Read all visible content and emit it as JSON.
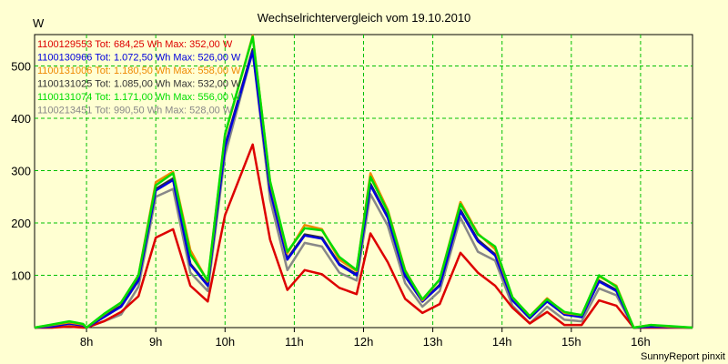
{
  "chart_data": {
    "type": "line",
    "title": "Wechselrichtervergleich vom 19.10.2010",
    "ylabel": "W",
    "xlabel": "",
    "credit": "SunnyReport pinxit",
    "ylim": [
      0,
      560
    ],
    "yticks": [
      100,
      200,
      300,
      400,
      500
    ],
    "xlim": [
      7.25,
      16.75
    ],
    "xticks": [
      {
        "value": 8,
        "label": "8h"
      },
      {
        "value": 9,
        "label": "9h"
      },
      {
        "value": 10,
        "label": "10h"
      },
      {
        "value": 11,
        "label": "11h"
      },
      {
        "value": 12,
        "label": "12h"
      },
      {
        "value": 13,
        "label": "13h"
      },
      {
        "value": 14,
        "label": "14h"
      },
      {
        "value": 15,
        "label": "15h"
      },
      {
        "value": 16,
        "label": "16h"
      }
    ],
    "grid": true,
    "legend_position": "top-left",
    "x": [
      7.25,
      7.5,
      7.75,
      7.95,
      8.0,
      8.25,
      8.5,
      8.75,
      9.0,
      9.25,
      9.5,
      9.75,
      10.0,
      10.4,
      10.65,
      10.9,
      11.15,
      11.4,
      11.65,
      11.9,
      12.1,
      12.35,
      12.6,
      12.85,
      13.1,
      13.4,
      13.65,
      13.9,
      14.15,
      14.4,
      14.65,
      14.9,
      15.15,
      15.4,
      15.65,
      15.9,
      16.15,
      16.4,
      16.75
    ],
    "series": [
      {
        "name": "1100129553",
        "label": "1100129553 Tot: 684,25 Wh Max: 352,00 W",
        "color": "#dd0000",
        "values": [
          0,
          0,
          2,
          0,
          0,
          12,
          30,
          60,
          172,
          188,
          80,
          50,
          215,
          350,
          168,
          72,
          110,
          102,
          76,
          64,
          180,
          125,
          55,
          28,
          45,
          143,
          105,
          80,
          38,
          8,
          30,
          5,
          5,
          52,
          42,
          0,
          0,
          0,
          0
        ]
      },
      {
        "name": "1100130966",
        "label": "1100130966 Tot: 1.072,50 Wh Max: 526,00 W",
        "color": "#0000dd",
        "values": [
          0,
          2,
          8,
          4,
          0,
          20,
          40,
          90,
          262,
          282,
          120,
          80,
          345,
          528,
          262,
          130,
          176,
          170,
          120,
          100,
          272,
          210,
          98,
          50,
          80,
          222,
          165,
          138,
          52,
          18,
          50,
          25,
          20,
          88,
          70,
          0,
          2,
          1,
          0
        ]
      },
      {
        "name": "1100131006",
        "label": "1100131006 Tot: 1.180,50 Wh Max: 558,00 W",
        "color": "#ee8800",
        "values": [
          0,
          5,
          10,
          6,
          0,
          25,
          48,
          100,
          278,
          298,
          148,
          88,
          368,
          558,
          278,
          142,
          196,
          188,
          130,
          108,
          295,
          225,
          110,
          52,
          92,
          240,
          180,
          150,
          58,
          22,
          56,
          28,
          24,
          98,
          80,
          0,
          5,
          2,
          0
        ]
      },
      {
        "name": "1100131025",
        "label": "1100131025 Tot: 1.085,00 Wh Max: 532,00 W",
        "color": "#333333",
        "values": [
          0,
          3,
          8,
          4,
          0,
          22,
          42,
          92,
          265,
          285,
          122,
          82,
          348,
          532,
          264,
          132,
          178,
          172,
          122,
          102,
          275,
          212,
          100,
          50,
          82,
          225,
          168,
          140,
          53,
          18,
          51,
          25,
          21,
          90,
          72,
          0,
          2,
          1,
          0
        ]
      },
      {
        "name": "1100131074",
        "label": "1100131074 Tot: 1.171,00 Wh Max: 556,00 W",
        "color": "#00dd00",
        "values": [
          0,
          6,
          12,
          7,
          0,
          26,
          48,
          100,
          272,
          295,
          140,
          90,
          370,
          556,
          280,
          145,
          190,
          186,
          135,
          110,
          288,
          222,
          108,
          54,
          92,
          236,
          178,
          155,
          58,
          22,
          54,
          30,
          24,
          100,
          78,
          0,
          5,
          3,
          0
        ]
      },
      {
        "name": "1100213451",
        "label": "1100213451 Tot: 990,50 Wh Max: 528,00 W",
        "color": "#888888",
        "values": [
          0,
          0,
          4,
          2,
          0,
          12,
          25,
          78,
          250,
          265,
          105,
          70,
          330,
          528,
          245,
          110,
          162,
          155,
          105,
          90,
          255,
          195,
          85,
          40,
          70,
          210,
          145,
          128,
          42,
          8,
          40,
          15,
          12,
          75,
          62,
          0,
          0,
          0,
          0
        ]
      }
    ]
  }
}
